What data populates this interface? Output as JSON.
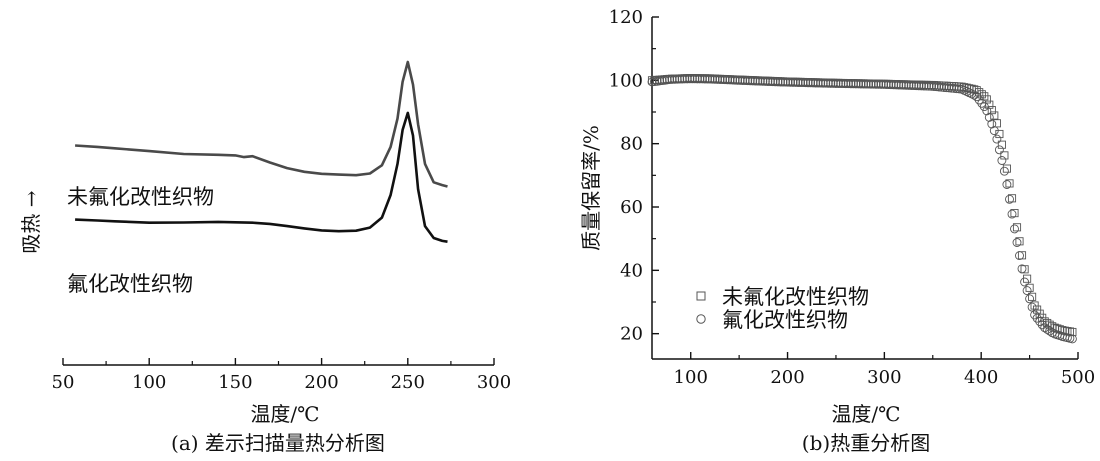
{
  "chart_data": [
    {
      "type": "line",
      "caption": "(a) 差示扫描量热分析图",
      "xlabel": "温度/℃",
      "ylabel": "吸热 →",
      "xlim": [
        50,
        300
      ],
      "xticks": [
        50,
        100,
        150,
        200,
        250,
        300
      ],
      "y_ticks_shown": false,
      "series": [
        {
          "name": "未氟化改性织物",
          "color": "#4a4a4a",
          "x": [
            57,
            70,
            80,
            100,
            120,
            140,
            150,
            155,
            160,
            170,
            180,
            190,
            200,
            210,
            220,
            228,
            235,
            240,
            244,
            247,
            250,
            253,
            256,
            260,
            265,
            270,
            273
          ],
          "y": [
            0.705,
            0.7,
            0.695,
            0.685,
            0.675,
            0.672,
            0.67,
            0.664,
            0.667,
            0.645,
            0.625,
            0.612,
            0.605,
            0.602,
            0.6,
            0.606,
            0.635,
            0.7,
            0.8,
            0.93,
            1.0,
            0.92,
            0.78,
            0.64,
            0.575,
            0.565,
            0.56
          ]
        },
        {
          "name": "氟化改性织物",
          "color": "#111111",
          "x": [
            57,
            70,
            80,
            100,
            120,
            140,
            160,
            170,
            180,
            190,
            200,
            210,
            220,
            228,
            235,
            240,
            244,
            247,
            250,
            253,
            256,
            260,
            265,
            270,
            273
          ],
          "y": [
            0.443,
            0.44,
            0.437,
            0.432,
            0.433,
            0.435,
            0.432,
            0.428,
            0.42,
            0.412,
            0.405,
            0.402,
            0.404,
            0.415,
            0.45,
            0.53,
            0.64,
            0.76,
            0.82,
            0.74,
            0.55,
            0.42,
            0.378,
            0.368,
            0.365
          ]
        }
      ]
    },
    {
      "type": "scatter",
      "caption": "(b)热重分析图",
      "xlabel": "温度/℃",
      "ylabel": "质量保留率/%",
      "xlim": [
        60,
        500
      ],
      "ylim": [
        12,
        120
      ],
      "xticks": [
        100,
        200,
        300,
        400,
        500
      ],
      "yticks": [
        20,
        40,
        60,
        80,
        100,
        120
      ],
      "legend_position": "bottom-left",
      "series": [
        {
          "name": "未氟化改性织物",
          "marker": "square",
          "x": [
            60,
            80,
            100,
            120,
            150,
            200,
            250,
            300,
            350,
            380,
            395,
            405,
            415,
            425,
            435,
            445,
            455,
            465,
            475,
            485,
            495
          ],
          "y": [
            100.0,
            100.5,
            100.7,
            100.6,
            100.2,
            99.6,
            99.2,
            98.9,
            98.5,
            98.0,
            97.0,
            94.5,
            88.0,
            75.0,
            57.0,
            40.0,
            29.0,
            24.0,
            22.0,
            21.0,
            20.5
          ]
        },
        {
          "name": "氟化改性织物",
          "marker": "circle",
          "x": [
            60,
            80,
            100,
            120,
            150,
            200,
            250,
            300,
            350,
            380,
            395,
            405,
            415,
            425,
            435,
            445,
            455,
            465,
            475,
            485,
            495
          ],
          "y": [
            99.5,
            100.3,
            100.5,
            100.4,
            100.0,
            99.4,
            99.0,
            98.7,
            98.1,
            97.2,
            95.0,
            91.0,
            83.0,
            70.0,
            52.0,
            36.0,
            26.0,
            22.0,
            20.0,
            19.0,
            18.3
          ]
        }
      ]
    }
  ]
}
